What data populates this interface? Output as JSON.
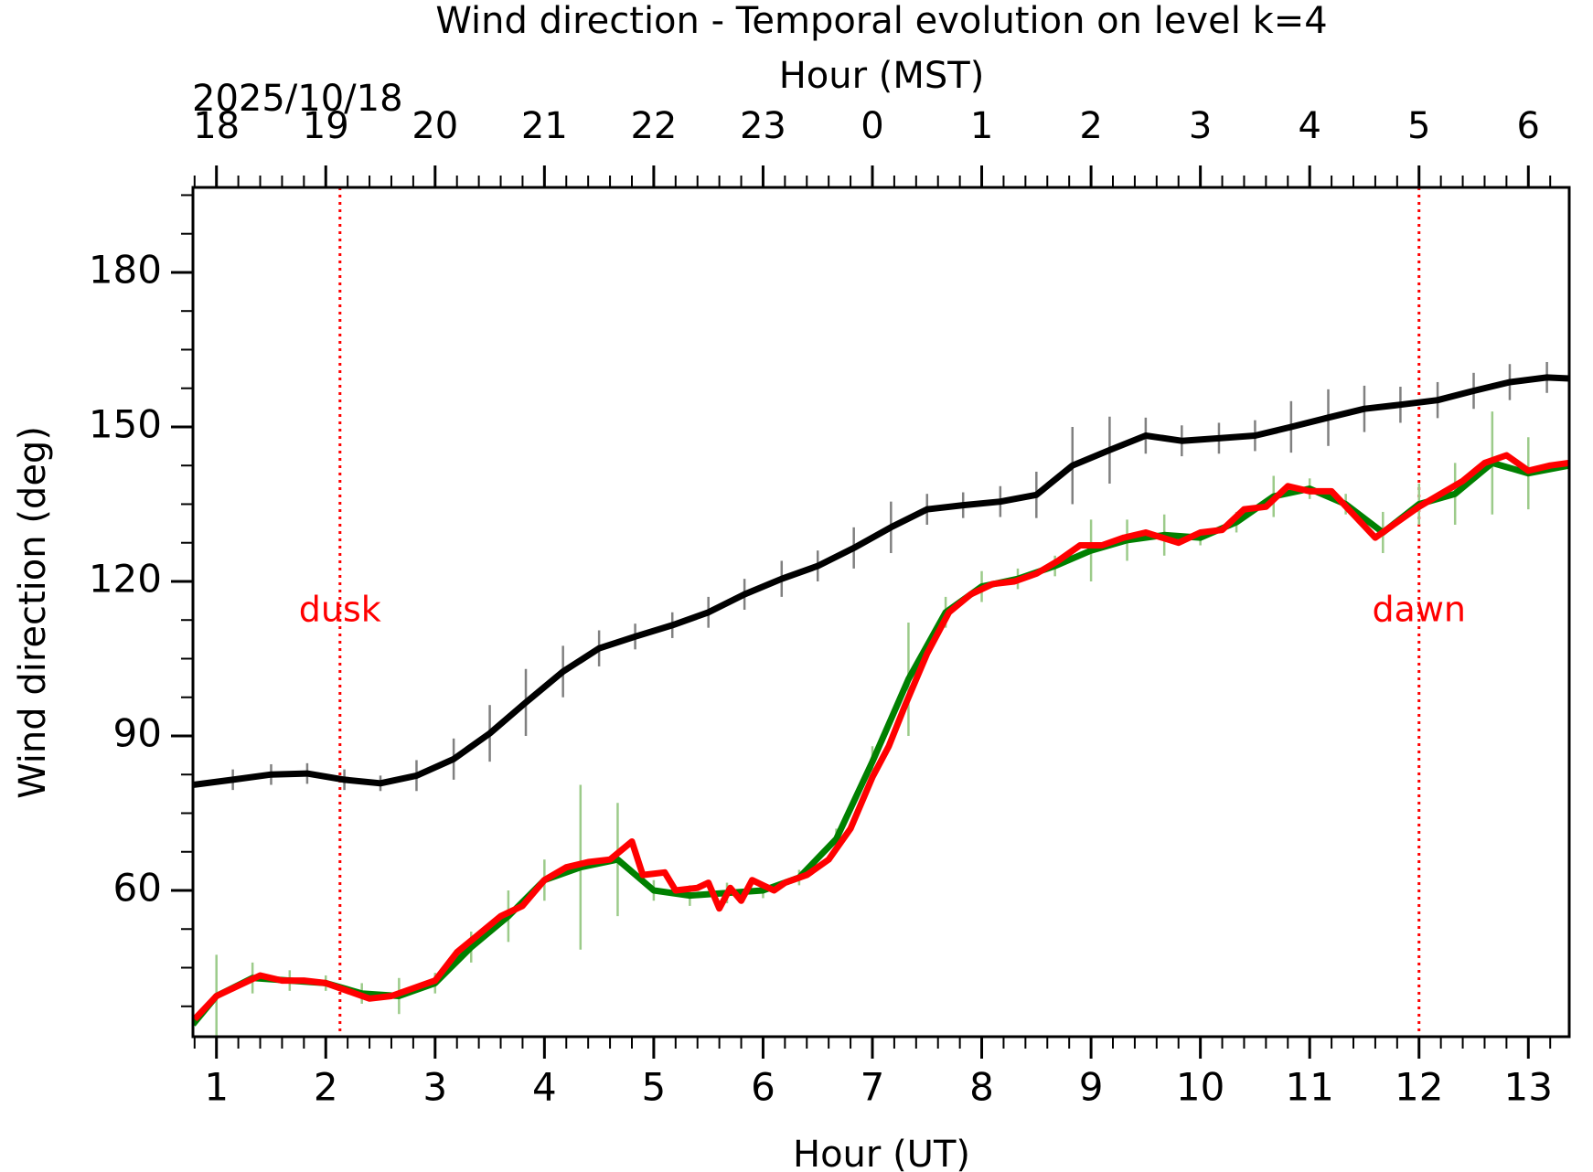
{
  "chart_data": {
    "type": "line",
    "title": "Wind direction - Temporal evolution on level k=4",
    "x2_label": "Hour (MST)",
    "date_label": "2025/10/18",
    "xlabel": "Hour (UT)",
    "ylabel": "Wind direction (deg)",
    "xlim": [
      0.785,
      13.374
    ],
    "ylim": [
      31.6,
      196.5
    ],
    "xticks": [
      1,
      2,
      3,
      4,
      5,
      6,
      7,
      8,
      9,
      10,
      11,
      12,
      13
    ],
    "x2ticks": [
      {
        "value": 1,
        "label": "18"
      },
      {
        "value": 2,
        "label": "19"
      },
      {
        "value": 3,
        "label": "20"
      },
      {
        "value": 4,
        "label": "21"
      },
      {
        "value": 5,
        "label": "22"
      },
      {
        "value": 6,
        "label": "23"
      },
      {
        "value": 7,
        "label": "0"
      },
      {
        "value": 8,
        "label": "1"
      },
      {
        "value": 9,
        "label": "2"
      },
      {
        "value": 10,
        "label": "3"
      },
      {
        "value": 11,
        "label": "4"
      },
      {
        "value": 12,
        "label": "5"
      },
      {
        "value": 13,
        "label": "6"
      }
    ],
    "x_minor_ticks": [
      0.8,
      1.2,
      1.4,
      1.6,
      1.8,
      2.2,
      2.4,
      2.6,
      2.8,
      3.2,
      3.4,
      3.6,
      3.8,
      4.2,
      4.4,
      4.6,
      4.8,
      5.2,
      5.4,
      5.6,
      5.8,
      6.2,
      6.4,
      6.6,
      6.8,
      7.2,
      7.4,
      7.6,
      7.8,
      8.2,
      8.4,
      8.6,
      8.8,
      9.2,
      9.4,
      9.6,
      9.8,
      10.2,
      10.4,
      10.6,
      10.8,
      11.2,
      11.4,
      11.6,
      11.8,
      12.2,
      12.4,
      12.6,
      12.8,
      13.2
    ],
    "yticks": [
      60,
      90,
      120,
      150,
      180
    ],
    "y_minor_ticks": [
      37.5,
      45,
      52.5,
      67.5,
      75,
      82.5,
      97.5,
      105,
      112.5,
      127.5,
      135,
      142.5,
      157.5,
      165,
      172.5,
      187.5,
      195
    ],
    "vlines": [
      {
        "x": 2.13,
        "label": "dusk",
        "label_y": 114.1,
        "color": "#ff0000"
      },
      {
        "x": 12.0,
        "label": "dawn",
        "label_y": 114.1,
        "color": "#ff0000"
      }
    ],
    "series": [
      {
        "color": "#000000",
        "error_color": "#808080",
        "width": 7,
        "x": [
          0.785,
          1.15,
          1.5,
          1.83,
          2.17,
          2.5,
          2.83,
          3.17,
          3.5,
          3.83,
          4.17,
          4.5,
          4.83,
          5.17,
          5.5,
          5.83,
          6.17,
          6.5,
          6.83,
          7.17,
          7.5,
          7.83,
          8.17,
          8.5,
          8.83,
          9.17,
          9.5,
          9.83,
          10.17,
          10.5,
          10.83,
          11.17,
          11.5,
          11.83,
          12.17,
          12.5,
          12.83,
          13.17,
          13.374
        ],
        "values": [
          80.5,
          81.5,
          82.5,
          82.7,
          81.5,
          80.8,
          82.3,
          85.5,
          90.5,
          96.5,
          102.5,
          107,
          109.3,
          111.5,
          114,
          117.5,
          120.5,
          123,
          126.5,
          130.5,
          134,
          134.8,
          135.5,
          136.8,
          142.5,
          145.5,
          148.3,
          147.3,
          147.8,
          148.3,
          150,
          151.8,
          153.5,
          154.3,
          155.2,
          157,
          158.7,
          159.6,
          159.4
        ],
        "errors": [
          1.5,
          2,
          2,
          2,
          2,
          1.5,
          3,
          4,
          5.5,
          6.5,
          5,
          3.5,
          2.5,
          2.5,
          3,
          3,
          3.5,
          3,
          4,
          5,
          3,
          2.5,
          3,
          4.5,
          7.5,
          6.5,
          3.5,
          3,
          3,
          3,
          5,
          5.5,
          4.5,
          3.5,
          3.5,
          3.5,
          3.5,
          3,
          2
        ]
      },
      {
        "color": "#008000",
        "error_color": "#9ccb8a",
        "width": 7,
        "x": [
          0.785,
          1.0,
          1.33,
          1.67,
          2.0,
          2.33,
          2.67,
          3.0,
          3.33,
          3.67,
          4.0,
          4.33,
          4.67,
          5.0,
          5.33,
          5.67,
          6.0,
          6.33,
          6.67,
          7.0,
          7.33,
          7.67,
          8.0,
          8.33,
          8.67,
          9.0,
          9.33,
          9.67,
          10.0,
          10.33,
          10.67,
          11.0,
          11.33,
          11.67,
          12.0,
          12.33,
          12.67,
          13.0,
          13.374
        ],
        "values": [
          34,
          39.5,
          43,
          42.5,
          42,
          40,
          39.5,
          42,
          49,
          55,
          62,
          64.5,
          66,
          60,
          59,
          59.5,
          60,
          62.5,
          70,
          85,
          101,
          114,
          119,
          120.5,
          123,
          126,
          128,
          129,
          128.5,
          131.5,
          136.5,
          138,
          135,
          129.5,
          135,
          137,
          143,
          141,
          142.5
        ],
        "errors": [
          2,
          8,
          3,
          2,
          1.5,
          2,
          3.5,
          2,
          3,
          5,
          4,
          16,
          11,
          2,
          2,
          2,
          1.5,
          1.5,
          2,
          3,
          11,
          3,
          3,
          2,
          2,
          6,
          4,
          4,
          1.5,
          2,
          4,
          2,
          2,
          4,
          4,
          6,
          10,
          7,
          6
        ]
      },
      {
        "color": "#ff0000",
        "width": 7,
        "x": [
          0.8,
          1.0,
          1.2,
          1.4,
          1.6,
          1.8,
          2.0,
          2.2,
          2.4,
          2.6,
          2.8,
          3.0,
          3.2,
          3.4,
          3.6,
          3.8,
          4.0,
          4.2,
          4.4,
          4.6,
          4.8,
          4.9,
          5.1,
          5.2,
          5.4,
          5.5,
          5.6,
          5.7,
          5.8,
          5.9,
          6.0,
          6.1,
          6.2,
          6.4,
          6.6,
          6.8,
          7.0,
          7.15,
          7.3,
          7.5,
          7.7,
          7.9,
          8.1,
          8.3,
          8.5,
          8.7,
          8.9,
          9.1,
          9.3,
          9.5,
          9.8,
          10.0,
          10.2,
          10.4,
          10.6,
          10.8,
          11.0,
          11.2,
          11.4,
          11.6,
          11.8,
          12.0,
          12.2,
          12.4,
          12.6,
          12.8,
          13.0,
          13.2,
          13.374
        ],
        "values": [
          35,
          39.5,
          41.5,
          43.5,
          42.5,
          42.5,
          42,
          40.5,
          39,
          39.5,
          41,
          42.5,
          48,
          51.5,
          55,
          57,
          62,
          64.5,
          65.5,
          66,
          69.5,
          63,
          63.5,
          60,
          60.5,
          61.5,
          56.5,
          60.5,
          58,
          62,
          61,
          60,
          61.5,
          63,
          66,
          72,
          82,
          88,
          96,
          106,
          114,
          117.5,
          119.5,
          120,
          121.5,
          124,
          127,
          127,
          128.5,
          129.5,
          127.5,
          129.5,
          130,
          134,
          134.5,
          138.5,
          137.5,
          137.5,
          133,
          128.5,
          131.5,
          134.5,
          137,
          139.5,
          143,
          144.5,
          141.5,
          142.5,
          143
        ]
      }
    ]
  }
}
